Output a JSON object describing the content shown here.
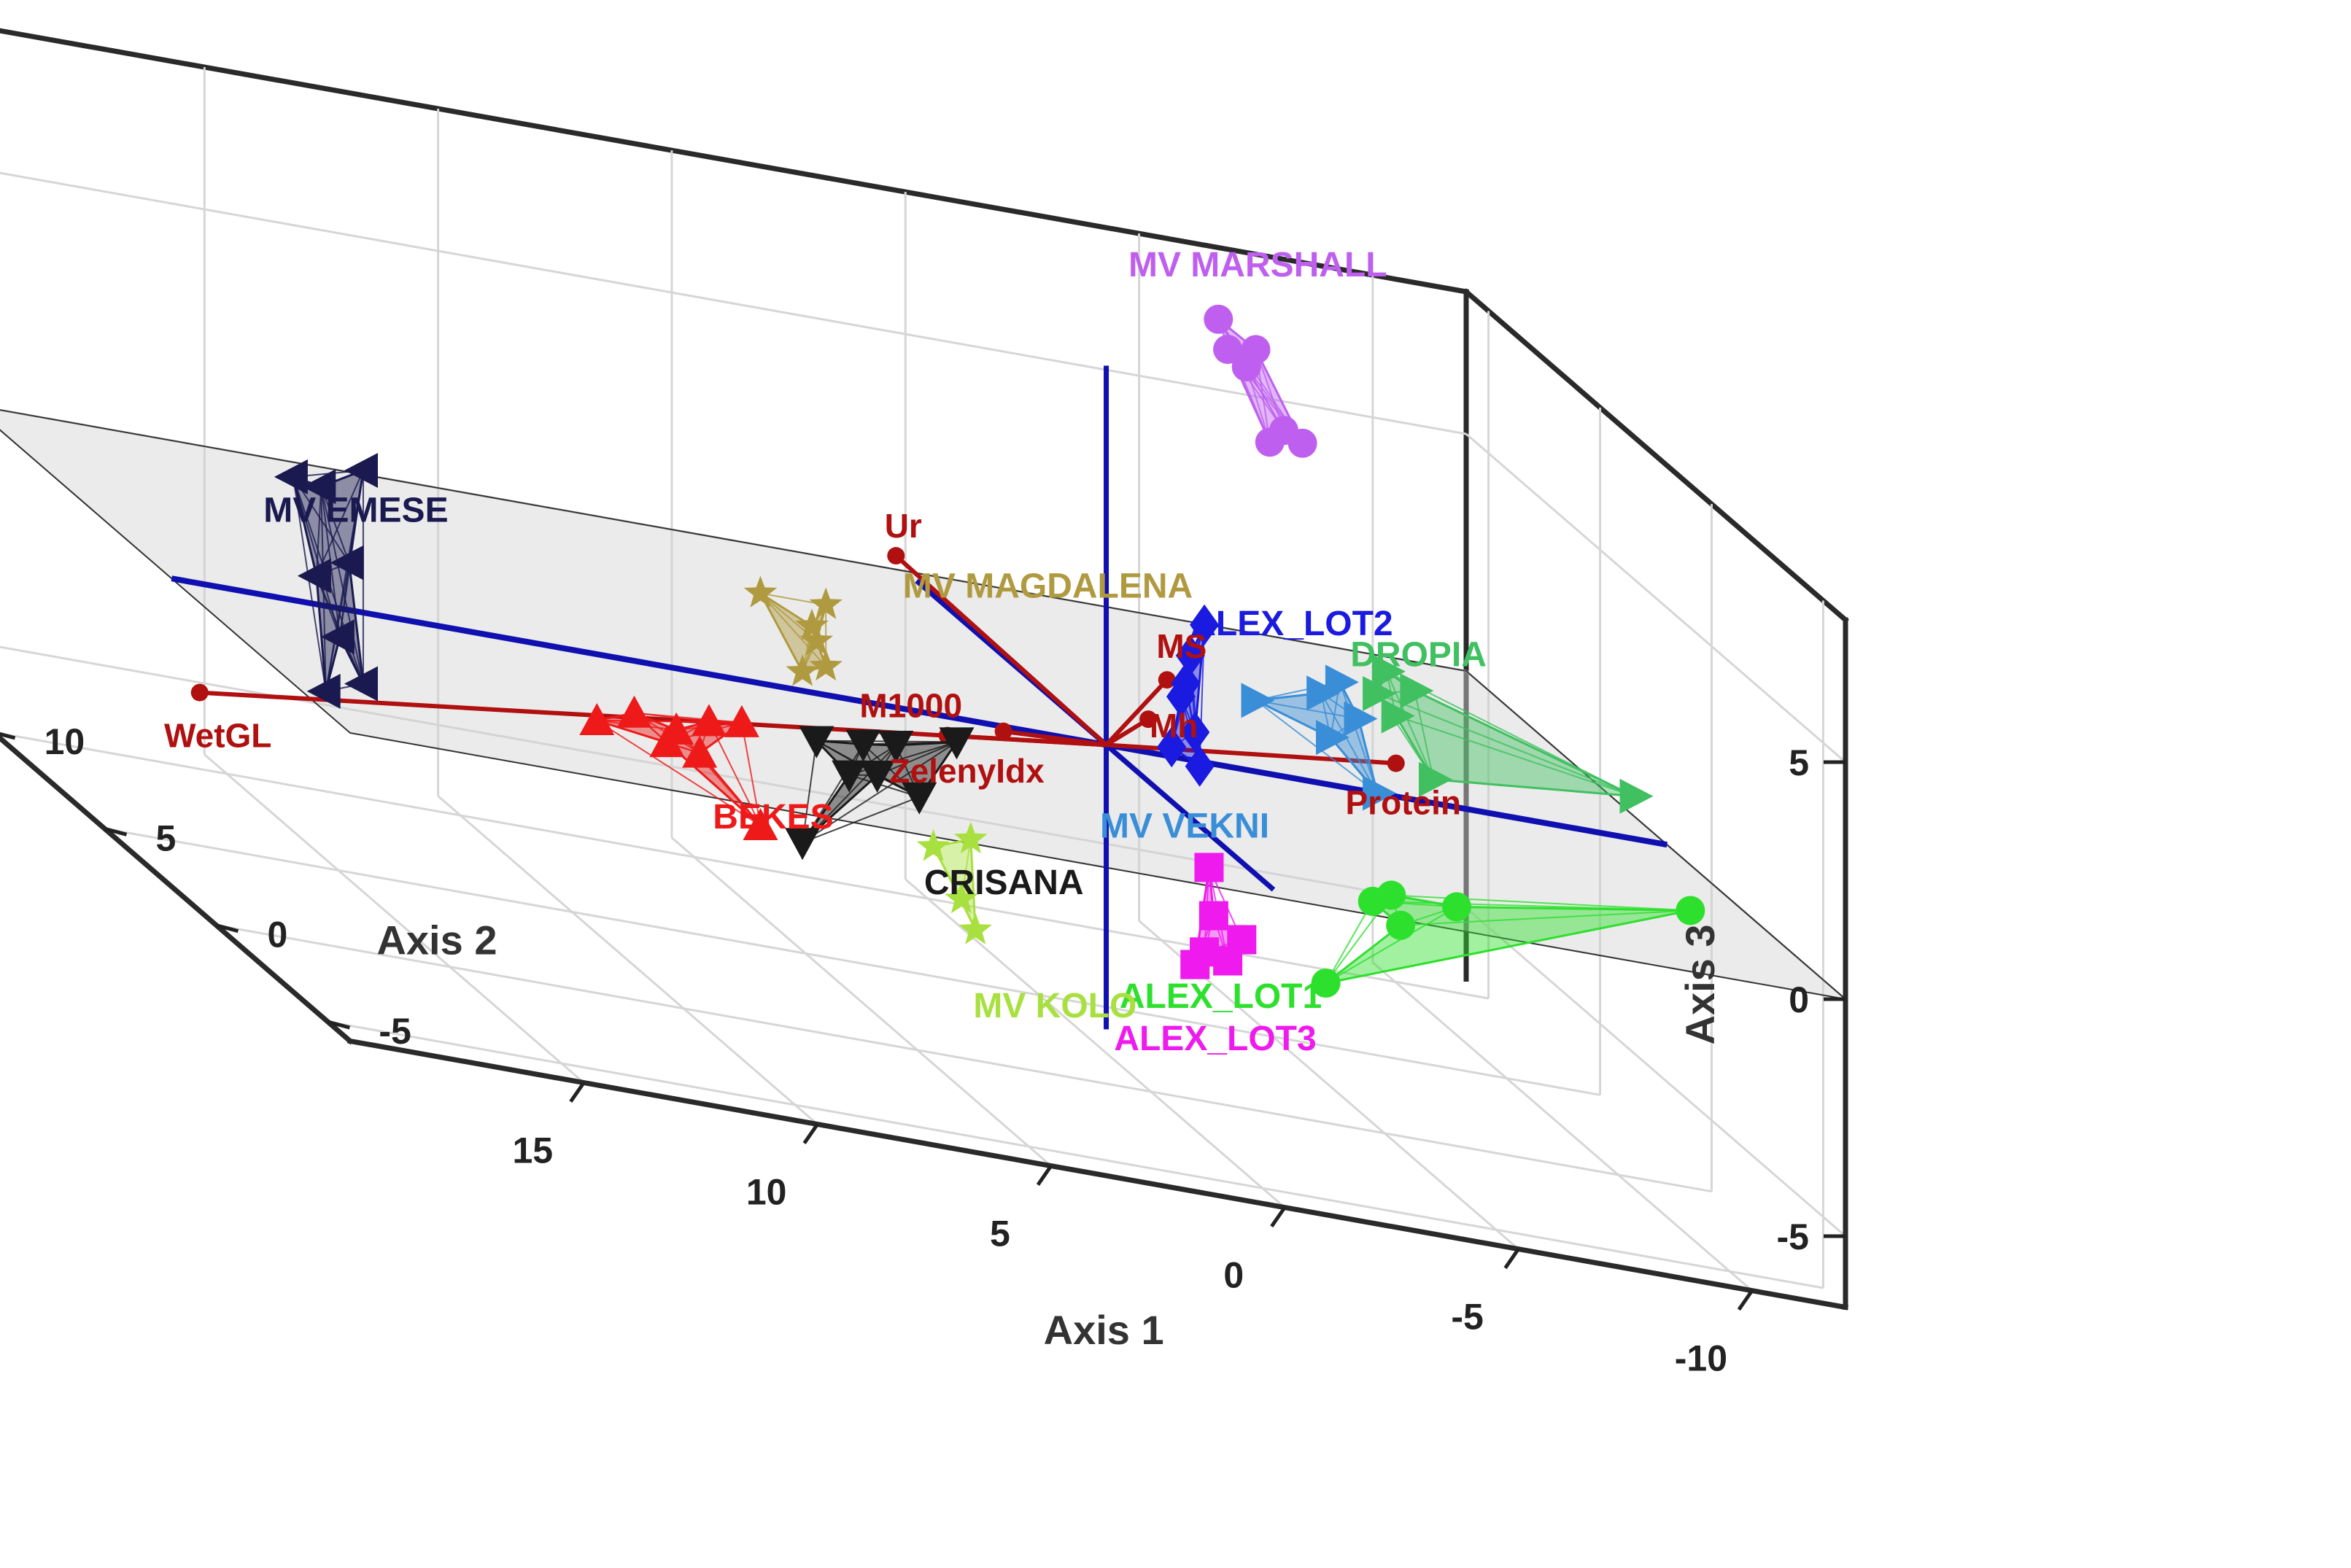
{
  "chart_data": {
    "type": "scatter3d",
    "axes": {
      "x": {
        "label": "Axis 1",
        "range": [
          -12,
          20
        ],
        "ticks": [
          -10,
          -5,
          0,
          5,
          10,
          15
        ],
        "tick_labels": [
          "-10",
          "-5",
          "0",
          "5",
          "10",
          "15"
        ]
      },
      "y": {
        "label": "Axis 2",
        "range": [
          -6,
          11
        ],
        "ticks": [
          -5,
          0,
          5,
          10
        ],
        "tick_labels": [
          "-5",
          "0",
          "5",
          "10"
        ]
      },
      "z": {
        "label": "Axis 3",
        "range": [
          -6.5,
          8
        ],
        "ticks": [
          -5,
          0,
          5
        ],
        "tick_labels": [
          "-5",
          "0",
          "5"
        ]
      }
    },
    "grid": true,
    "zero_plane": true,
    "groups": [
      {
        "name": "MV MARSHALL",
        "color": "#bf5fef",
        "marker": "circle",
        "label": "MV MARSHALL",
        "points": [
          [
            -3.5,
            0,
            7.0
          ],
          [
            -3.8,
            0,
            7.3
          ],
          [
            -4.2,
            0,
            7.1
          ],
          [
            -3.0,
            0,
            8.5
          ],
          [
            -3.2,
            0,
            8.9
          ],
          [
            -2.6,
            0,
            8.8
          ],
          [
            -2.4,
            0,
            9.4
          ]
        ]
      },
      {
        "name": "DROPIA",
        "color": "#40c060",
        "marker": "triangle-right",
        "label": "DROPIA",
        "points": [
          [
            -11.3,
            0,
            0.9
          ],
          [
            -7.0,
            0,
            0.5
          ],
          [
            -6.2,
            0,
            1.7
          ],
          [
            -6.0,
            0,
            2.6
          ],
          [
            -5.8,
            0,
            2.1
          ],
          [
            -6.6,
            0,
            2.3
          ]
        ]
      },
      {
        "name": "MV VEKNI",
        "color": "#3a8ed8",
        "marker": "triangle-right",
        "label": "MV VEKNI",
        "points": [
          [
            -5.8,
            0,
            0.0
          ],
          [
            -5.4,
            0,
            1.5
          ],
          [
            -5.0,
            0,
            2.2
          ],
          [
            -4.6,
            0,
            1.9
          ],
          [
            -3.2,
            0,
            1.5
          ],
          [
            -4.8,
            0,
            1.0
          ]
        ]
      },
      {
        "name": "ALEX_LOT2",
        "color": "#1a1ae0",
        "marker": "diamond",
        "label": "ALEX_LOT2",
        "points": [
          [
            -2.1,
            0,
            2.9
          ],
          [
            -1.8,
            0,
            2.2
          ],
          [
            -1.6,
            0,
            1.3
          ],
          [
            -1.9,
            0,
            0.6
          ],
          [
            -1.4,
            0,
            0.2
          ],
          [
            -2.0,
            0,
            -0.1
          ],
          [
            -1.7,
            0,
            1.6
          ]
        ]
      },
      {
        "name": "MV MAGDALENA",
        "color": "#b09a40",
        "marker": "star",
        "label": "MV MAGDALENA",
        "points": [
          [
            6.0,
            0,
            1.9
          ],
          [
            6.2,
            0,
            1.1
          ],
          [
            7.4,
            0,
            1.9
          ],
          [
            6.5,
            0,
            0.4
          ],
          [
            6.0,
            0,
            0.6
          ],
          [
            6.3,
            0,
            1.4
          ]
        ]
      },
      {
        "name": "MV EMESE",
        "color": "#1a1a50",
        "marker": "triangle-left",
        "label": "MV EMESE",
        "points": [
          [
            15.9,
            0,
            3.0
          ],
          [
            16.8,
            0,
            2.5
          ],
          [
            17.4,
            0,
            2.6
          ],
          [
            16.2,
            0,
            1.0
          ],
          [
            16.9,
            0,
            0.6
          ],
          [
            16.4,
            0,
            -0.6
          ],
          [
            16.7,
            0,
            -1.8
          ],
          [
            15.9,
            0,
            -1.5
          ]
        ]
      },
      {
        "name": "CRISANA",
        "color": "#1a1a1a",
        "marker": "triangle-down",
        "label": "CRISANA",
        "points": [
          [
            3.2,
            0,
            -0.5
          ],
          [
            4.5,
            0,
            -0.8
          ],
          [
            5.2,
            0,
            -0.9
          ],
          [
            6.2,
            0,
            -1.0
          ],
          [
            4.0,
            0,
            -1.8
          ],
          [
            4.9,
            0,
            -1.5
          ],
          [
            5.5,
            0,
            -1.6
          ],
          [
            6.5,
            0,
            -3.2
          ]
        ]
      },
      {
        "name": "BEKES",
        "color": "#ee1a1a",
        "marker": "triangle-up",
        "label": "BEKES",
        "points": [
          [
            7.8,
            0,
            -0.9
          ],
          [
            8.5,
            0,
            -1.0
          ],
          [
            9.2,
            0,
            -1.3
          ],
          [
            10.1,
            0,
            -1.1
          ],
          [
            8.7,
            0,
            -1.7
          ],
          [
            9.4,
            0,
            -1.6
          ],
          [
            10.9,
            0,
            -1.4
          ],
          [
            7.4,
            0,
            -3.0
          ]
        ]
      },
      {
        "name": "ALEX_LOT1",
        "color": "#2ee02e",
        "marker": "circle",
        "label": "ALEX_LOT1",
        "points": [
          [
            -12.5,
            0,
            -1.3
          ],
          [
            -7.5,
            0,
            -2.1
          ],
          [
            -6.1,
            0,
            -2.1
          ],
          [
            -5.7,
            0,
            -2.3
          ],
          [
            -6.3,
            0,
            -2.7
          ],
          [
            -4.7,
            0,
            -4.2
          ]
        ]
      },
      {
        "name": "ALEX_LOT3",
        "color": "#ee1aee",
        "marker": "square",
        "label": "ALEX_LOT3",
        "points": [
          [
            -2.2,
            0,
            -2.2
          ],
          [
            -2.3,
            0,
            -3.2
          ],
          [
            -2.9,
            0,
            -3.6
          ],
          [
            -2.1,
            0,
            -4.0
          ],
          [
            -1.9,
            0,
            -4.3
          ],
          [
            -2.6,
            0,
            -4.1
          ]
        ]
      },
      {
        "name": "MV KOLO",
        "color": "#a8e040",
        "marker": "star",
        "label": "MV KOLO",
        "points": [
          [
            2.9,
            0,
            -2.5
          ],
          [
            3.7,
            0,
            -2.8
          ],
          [
            3.1,
            0,
            -3.8
          ],
          [
            2.8,
            0,
            -4.4
          ]
        ]
      }
    ],
    "loading_vectors": [
      {
        "name": "Ur",
        "label": "Ur",
        "x": 4.5,
        "y": 0,
        "z": 3.2
      },
      {
        "name": "MS",
        "label": "MS",
        "x": -1.3,
        "y": 0,
        "z": 1.6
      },
      {
        "name": "Mh",
        "label": "Mh",
        "x": -0.9,
        "y": 0,
        "z": 0.7
      },
      {
        "name": "Protein",
        "label": "Protein",
        "x": -6.2,
        "y": 0,
        "z": 0.7
      },
      {
        "name": "M1000",
        "label": "M1000",
        "x": 3.4,
        "y": 0,
        "z": -0.4
      },
      {
        "name": "ZelenyIdx",
        "label": "ZelenyIdx",
        "x": 2.2,
        "y": 0,
        "z": -0.1
      },
      {
        "name": "WetGL",
        "label": "WetGL",
        "x": 19.4,
        "y": 0,
        "z": -2.3
      }
    ],
    "reference_axes": {
      "color": "#1010b0",
      "label": "principal axes through origin"
    }
  }
}
